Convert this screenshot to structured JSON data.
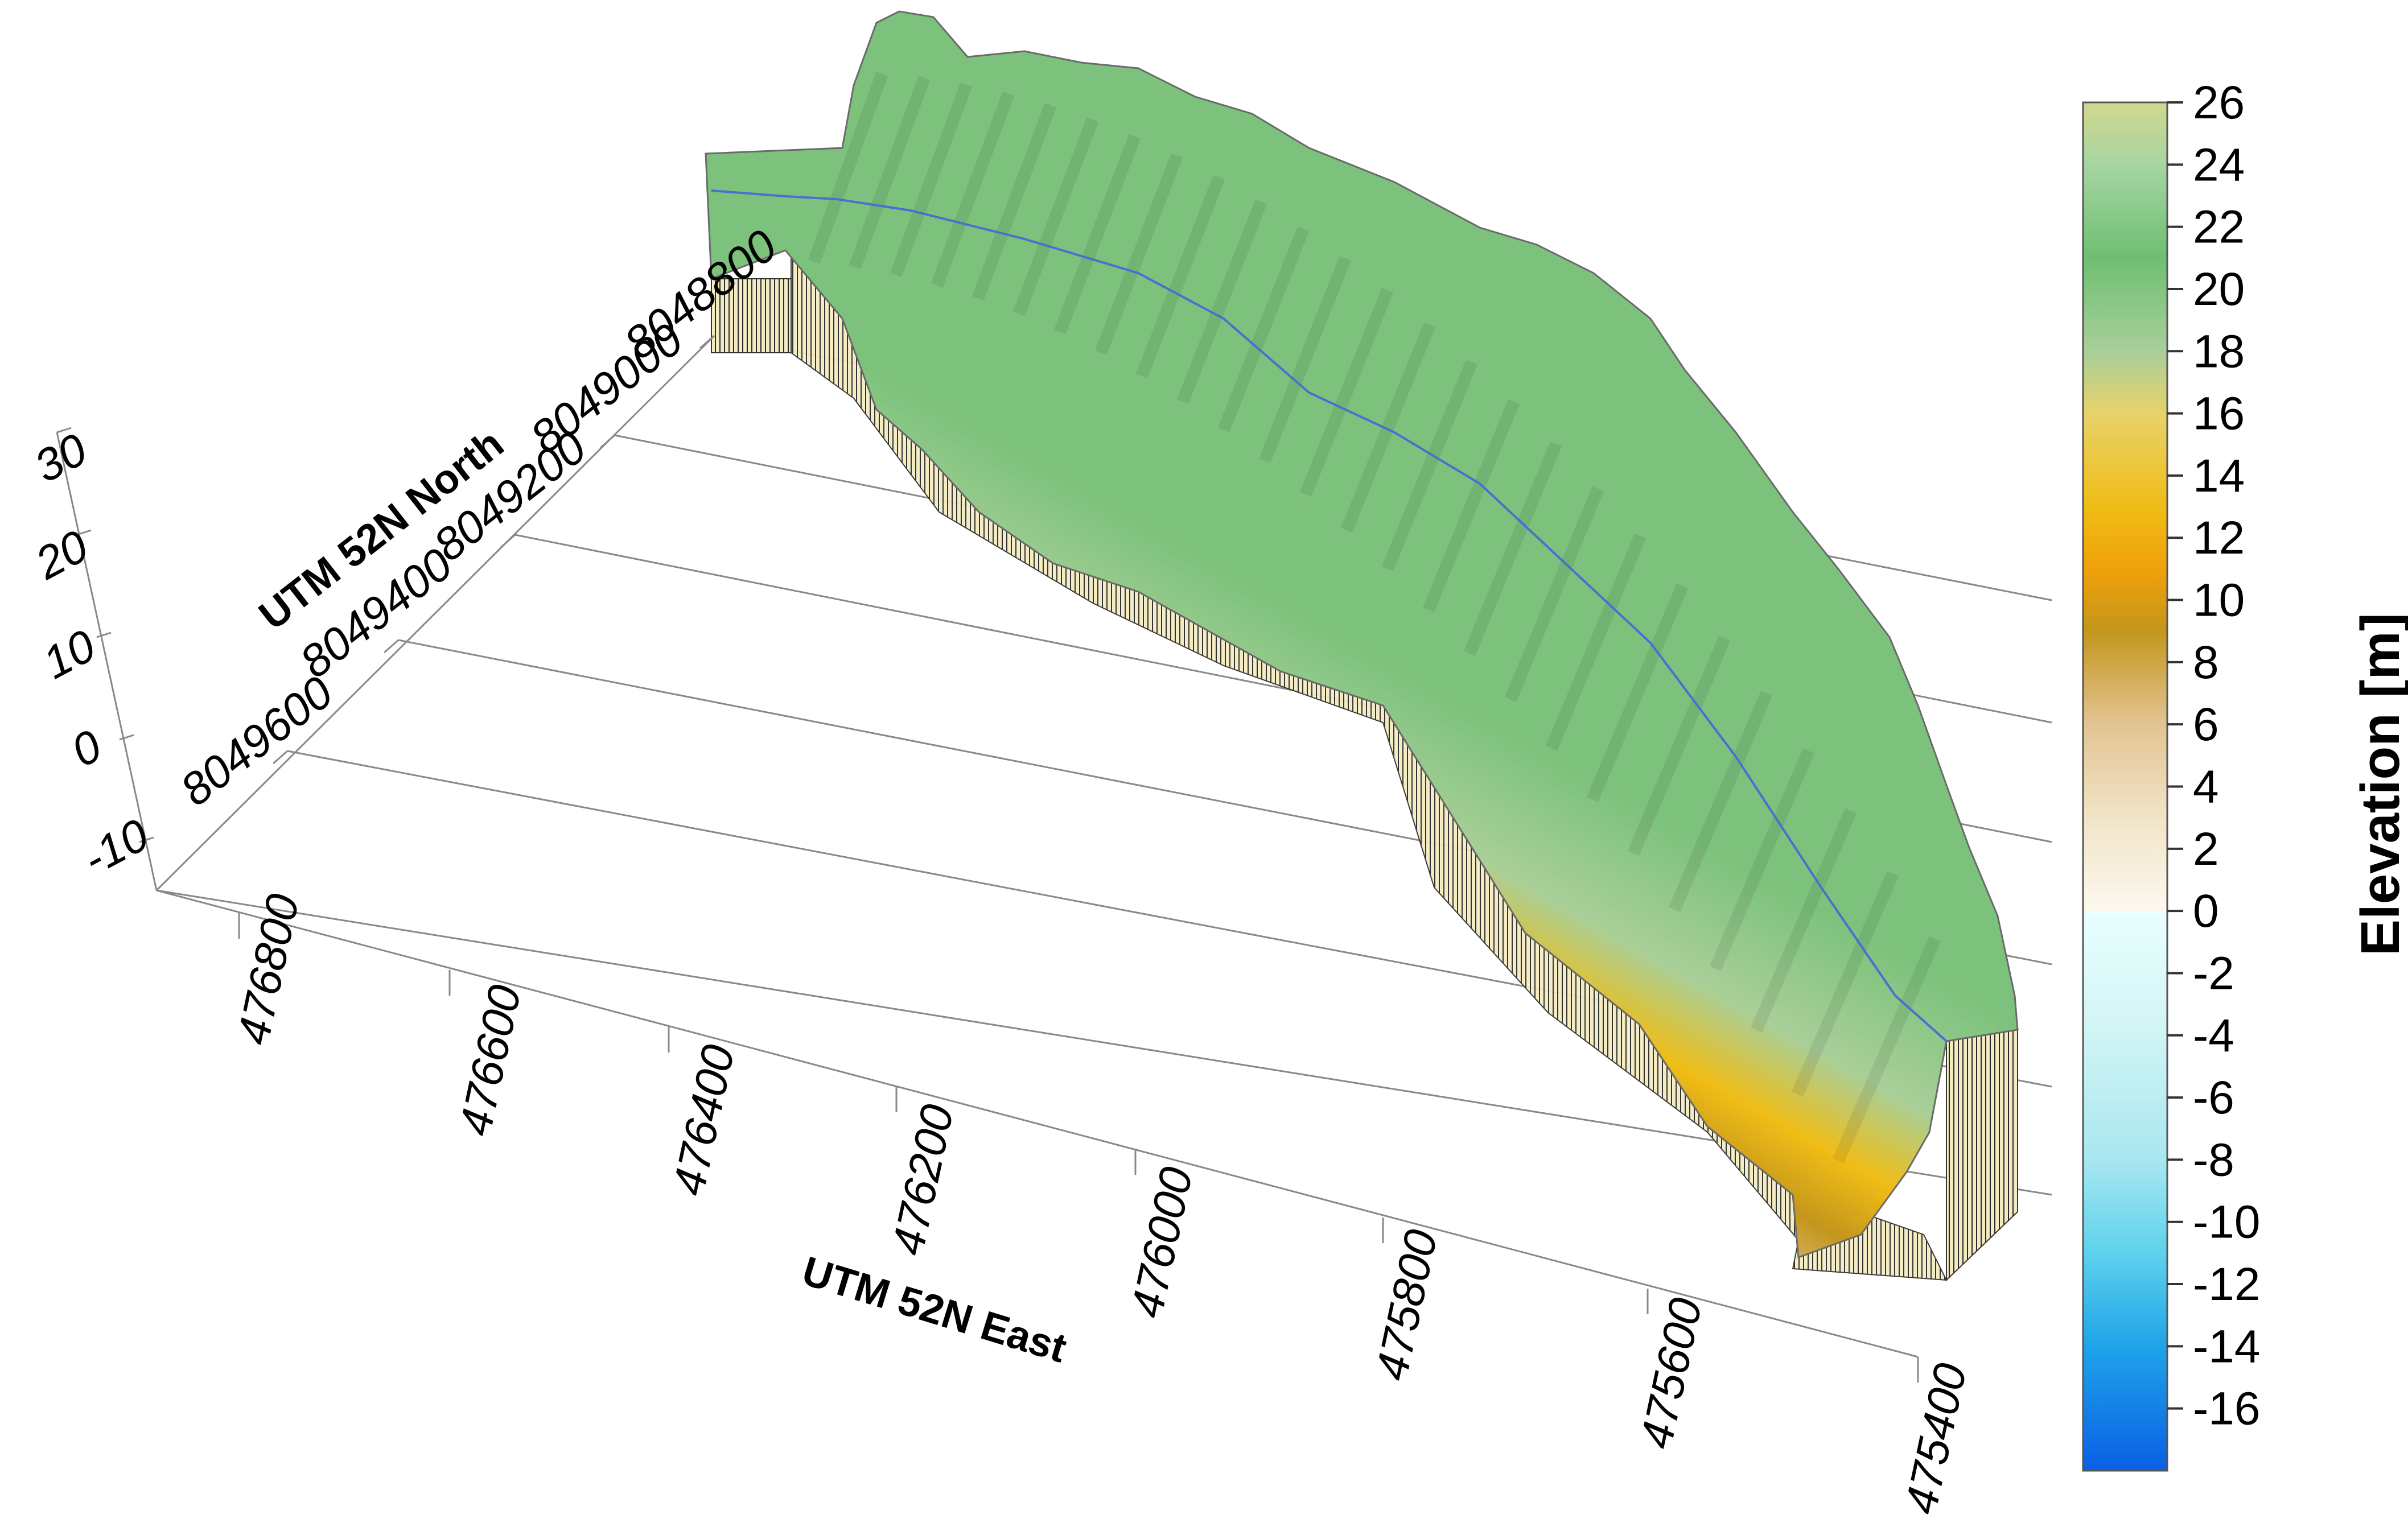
{
  "chart_data": {
    "type": "surface3d",
    "title": "",
    "axes": {
      "x": {
        "label": "UTM 52N East",
        "ticks": [
          "476800",
          "476600",
          "476400",
          "476200",
          "476000",
          "475800",
          "475600",
          "475400"
        ]
      },
      "y": {
        "label": "UTM 52N North",
        "ticks": [
          "8048800",
          "8049000",
          "8049200",
          "8049400",
          "8049600"
        ]
      },
      "z": {
        "label": "",
        "ticks": [
          "30",
          "20",
          "10",
          "0",
          "-10"
        ],
        "range": [
          -15,
          30
        ]
      }
    },
    "colorbar": {
      "title": "Elevation [m]",
      "range": [
        -18,
        26
      ],
      "ticks": [
        "26",
        "24",
        "22",
        "20",
        "18",
        "16",
        "14",
        "12",
        "10",
        "8",
        "6",
        "4",
        "2",
        "0",
        "-2",
        "-4",
        "-6",
        "-8",
        "-10",
        "-12",
        "-14",
        "-16"
      ],
      "stops": [
        {
          "value": 26,
          "color": "#d2d88e"
        },
        {
          "value": 24,
          "color": "#a6d5a3"
        },
        {
          "value": 21,
          "color": "#6ebf72"
        },
        {
          "value": 18,
          "color": "#a8cf9a"
        },
        {
          "value": 16,
          "color": "#e8d26a"
        },
        {
          "value": 13,
          "color": "#f0bd16"
        },
        {
          "value": 11,
          "color": "#f0a10a"
        },
        {
          "value": 9,
          "color": "#c4961c"
        },
        {
          "value": 6,
          "color": "#e2c493"
        },
        {
          "value": 3,
          "color": "#f1e4c6"
        },
        {
          "value": 0.01,
          "color": "#fdf9ee"
        },
        {
          "value": 0,
          "color": "#eaffff"
        },
        {
          "value": -4,
          "color": "#d0f4f4"
        },
        {
          "value": -8,
          "color": "#a8e7f0"
        },
        {
          "value": -11,
          "color": "#5dd2ec"
        },
        {
          "value": -14,
          "color": "#1fa4e8"
        },
        {
          "value": -18,
          "color": "#0a5fe6"
        }
      ]
    },
    "surface": {
      "description_colors": {
        "land_top": "#6ebf72",
        "shore": "#f0a10a",
        "shallow": "#e2c493",
        "water": "#a8e7f0",
        "deep": "#0a5fe6",
        "wall": "#f3ebc1"
      },
      "shoreline_color": "#4a6fd0"
    }
  }
}
